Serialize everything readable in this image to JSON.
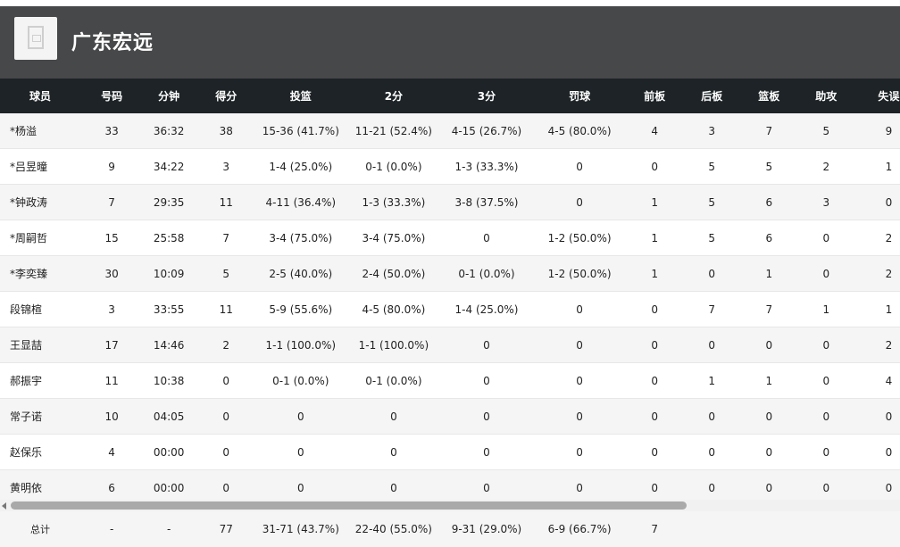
{
  "team": {
    "name": "广东宏远",
    "logo_icon": "team-logo-icon"
  },
  "columns": [
    "球员",
    "号码",
    "分钟",
    "得分",
    "投篮",
    "2分",
    "3分",
    "罚球",
    "前板",
    "后板",
    "篮板",
    "助攻",
    "失误"
  ],
  "rows": [
    [
      "*杨溢",
      "33",
      "36:32",
      "38",
      "15-36 (41.7%)",
      "11-21 (52.4%)",
      "4-15 (26.7%)",
      "4-5 (80.0%)",
      "4",
      "3",
      "7",
      "5",
      "9"
    ],
    [
      "*吕昱曈",
      "9",
      "34:22",
      "3",
      "1-4 (25.0%)",
      "0-1 (0.0%)",
      "1-3 (33.3%)",
      "0",
      "0",
      "5",
      "5",
      "2",
      "1"
    ],
    [
      "*钟政涛",
      "7",
      "29:35",
      "11",
      "4-11 (36.4%)",
      "1-3 (33.3%)",
      "3-8 (37.5%)",
      "0",
      "1",
      "5",
      "6",
      "3",
      "0"
    ],
    [
      "*周嗣哲",
      "15",
      "25:58",
      "7",
      "3-4 (75.0%)",
      "3-4 (75.0%)",
      "0",
      "1-2 (50.0%)",
      "1",
      "5",
      "6",
      "0",
      "2"
    ],
    [
      "*李奕臻",
      "30",
      "10:09",
      "5",
      "2-5 (40.0%)",
      "2-4 (50.0%)",
      "0-1 (0.0%)",
      "1-2 (50.0%)",
      "1",
      "0",
      "1",
      "0",
      "2"
    ],
    [
      "段锦楦",
      "3",
      "33:55",
      "11",
      "5-9 (55.6%)",
      "4-5 (80.0%)",
      "1-4 (25.0%)",
      "0",
      "0",
      "7",
      "7",
      "1",
      "1"
    ],
    [
      "王显喆",
      "17",
      "14:46",
      "2",
      "1-1 (100.0%)",
      "1-1 (100.0%)",
      "0",
      "0",
      "0",
      "0",
      "0",
      "0",
      "2"
    ],
    [
      "郝振宇",
      "11",
      "10:38",
      "0",
      "0-1 (0.0%)",
      "0-1 (0.0%)",
      "0",
      "0",
      "0",
      "1",
      "1",
      "0",
      "4"
    ],
    [
      "常子诺",
      "10",
      "04:05",
      "0",
      "0",
      "0",
      "0",
      "0",
      "0",
      "0",
      "0",
      "0",
      "0"
    ],
    [
      "赵保乐",
      "4",
      "00:00",
      "0",
      "0",
      "0",
      "0",
      "0",
      "0",
      "0",
      "0",
      "0",
      "0"
    ],
    [
      "黄明依",
      "6",
      "00:00",
      "0",
      "0",
      "0",
      "0",
      "0",
      "0",
      "0",
      "0",
      "0",
      "0"
    ]
  ],
  "totals": [
    "总计",
    "-",
    "-",
    "77",
    "31-71 (43.7%)",
    "22-40 (55.0%)",
    "9-31 (29.0%)",
    "6-9 (66.7%)",
    "7",
    "",
    "",
    "",
    ""
  ]
}
